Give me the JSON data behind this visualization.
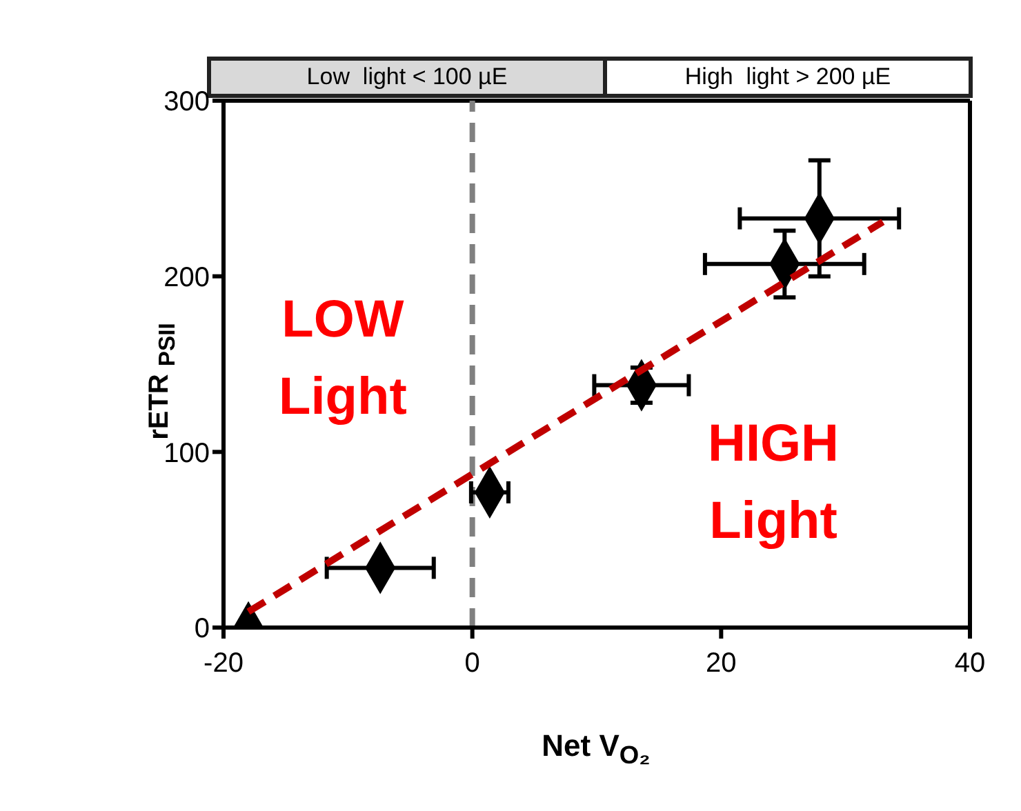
{
  "chart_data": {
    "type": "scatter",
    "xlabel": "Net V$_{O₂}$",
    "ylabel": "rETR $_{PSII}$",
    "xlim": [
      -20,
      40
    ],
    "xticks": [
      -20,
      0,
      20,
      40
    ],
    "ylim": [
      0,
      300
    ],
    "yticks": [
      0,
      100,
      200,
      300
    ],
    "grid": false,
    "legend": false,
    "series": [
      {
        "marker": "diamond",
        "color": "#000000",
        "x": [
          -18,
          -7.4,
          1.4,
          13.6,
          25.1,
          27.9
        ],
        "values": [
          0,
          34,
          77,
          138,
          207,
          233
        ],
        "xerrors": [
          null,
          4.3,
          1.5,
          3.8,
          6.4,
          6.4
        ],
        "errors": [
          null,
          null,
          null,
          10,
          19,
          33
        ]
      },
      {
        "type": "line",
        "color": "#c00000",
        "line_style": "dashed",
        "x": [
          -18,
          33
        ],
        "values": [
          9,
          231
        ]
      }
    ],
    "ref_lines": [
      {
        "axis": "x",
        "value": 0,
        "color": "#808080",
        "line_style": "dashed"
      }
    ],
    "annotations": [
      "Low  light < 100 µE",
      "High  light > 200 µE",
      "LOW Light",
      "HIGH Light"
    ]
  }
}
